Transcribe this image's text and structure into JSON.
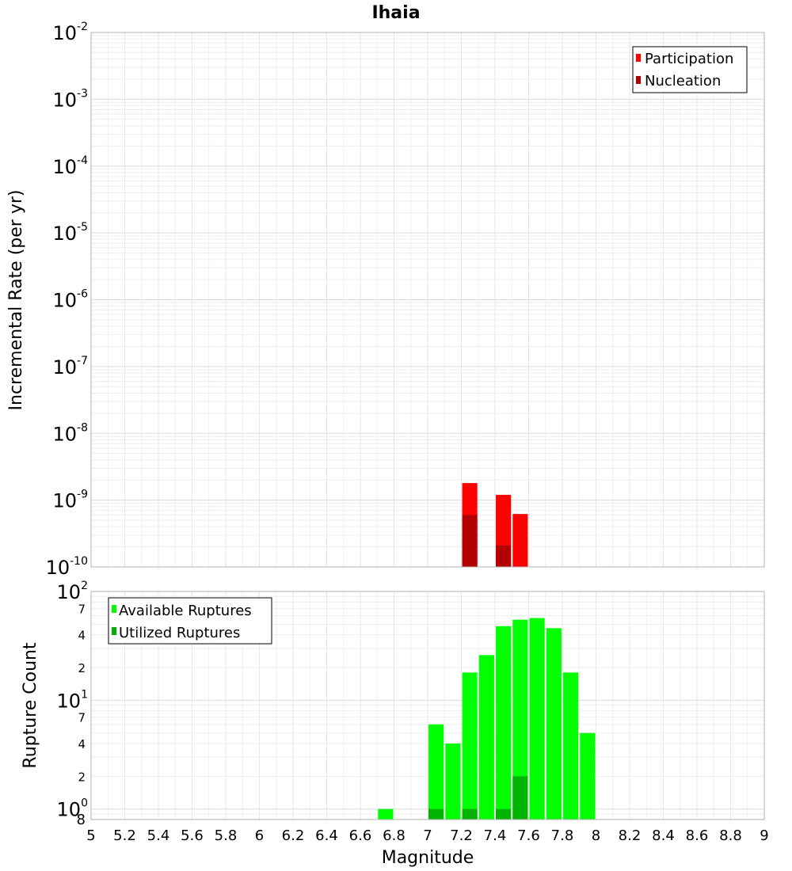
{
  "chart_data": [
    {
      "type": "bar",
      "title": "Ihaia",
      "xlabel": "",
      "ylabel": "Incremental Rate (per yr)",
      "yscale": "log",
      "xlim": [
        5,
        9
      ],
      "ylim": [
        1e-10,
        0.01
      ],
      "decade_labels": [
        {
          "value": 1e-10,
          "base": "10",
          "exp": "-10"
        },
        {
          "value": 1e-09,
          "base": "10",
          "exp": "-9"
        },
        {
          "value": 1e-08,
          "base": "10",
          "exp": "-8"
        },
        {
          "value": 1e-07,
          "base": "10",
          "exp": "-7"
        },
        {
          "value": 1e-06,
          "base": "10",
          "exp": "-6"
        },
        {
          "value": 1e-05,
          "base": "10",
          "exp": "-5"
        },
        {
          "value": 0.0001,
          "base": "10",
          "exp": "-4"
        },
        {
          "value": 0.001,
          "base": "10",
          "exp": "-3"
        },
        {
          "value": 0.01,
          "base": "10",
          "exp": "-2"
        }
      ],
      "grid": true,
      "legend_position": "top-right",
      "series": [
        {
          "name": "Participation",
          "color": "#ff0000",
          "x": [
            7.25,
            7.45,
            7.55
          ],
          "values": [
            1.8e-09,
            1.2e-09,
            6.2e-10
          ]
        },
        {
          "name": "Nucleation",
          "color": "#b30000",
          "x": [
            7.25,
            7.45
          ],
          "values": [
            6e-10,
            2.1e-10
          ]
        }
      ]
    },
    {
      "type": "bar",
      "title": "",
      "xlabel": "Magnitude",
      "ylabel": "Rupture Count",
      "yscale": "log",
      "xlim": [
        5,
        9
      ],
      "ylim": [
        0.8,
        100
      ],
      "x_ticks": [
        "5",
        "5.2",
        "5.4",
        "5.6",
        "5.8",
        "6",
        "6.2",
        "6.4",
        "6.6",
        "6.8",
        "7",
        "7.2",
        "7.4",
        "7.6",
        "7.8",
        "8",
        "8.2",
        "8.4",
        "8.6",
        "8.8",
        "9"
      ],
      "decade_labels": [
        {
          "value": 1,
          "base": "10",
          "exp": "0"
        },
        {
          "value": 10,
          "base": "10",
          "exp": "1"
        },
        {
          "value": 100,
          "base": "10",
          "exp": "2"
        }
      ],
      "minor_labels": [
        {
          "value": 0.8,
          "label": "8"
        },
        {
          "value": 2,
          "label": "2"
        },
        {
          "value": 4,
          "label": "4"
        },
        {
          "value": 7,
          "label": "7"
        },
        {
          "value": 20,
          "label": "2"
        },
        {
          "value": 40,
          "label": "4"
        },
        {
          "value": 70,
          "label": "7"
        }
      ],
      "grid": true,
      "legend_position": "top-left",
      "series": [
        {
          "name": "Available Ruptures",
          "color": "#00ff00",
          "x": [
            6.75,
            7.05,
            7.15,
            7.25,
            7.35,
            7.45,
            7.55,
            7.65,
            7.75,
            7.85,
            7.95
          ],
          "values": [
            1,
            6,
            4,
            18,
            26,
            48,
            55,
            57,
            46,
            18,
            5
          ]
        },
        {
          "name": "Utilized Ruptures",
          "color": "#00b300",
          "x": [
            7.05,
            7.25,
            7.45,
            7.55
          ],
          "values": [
            1,
            1,
            1,
            2
          ]
        }
      ]
    }
  ]
}
